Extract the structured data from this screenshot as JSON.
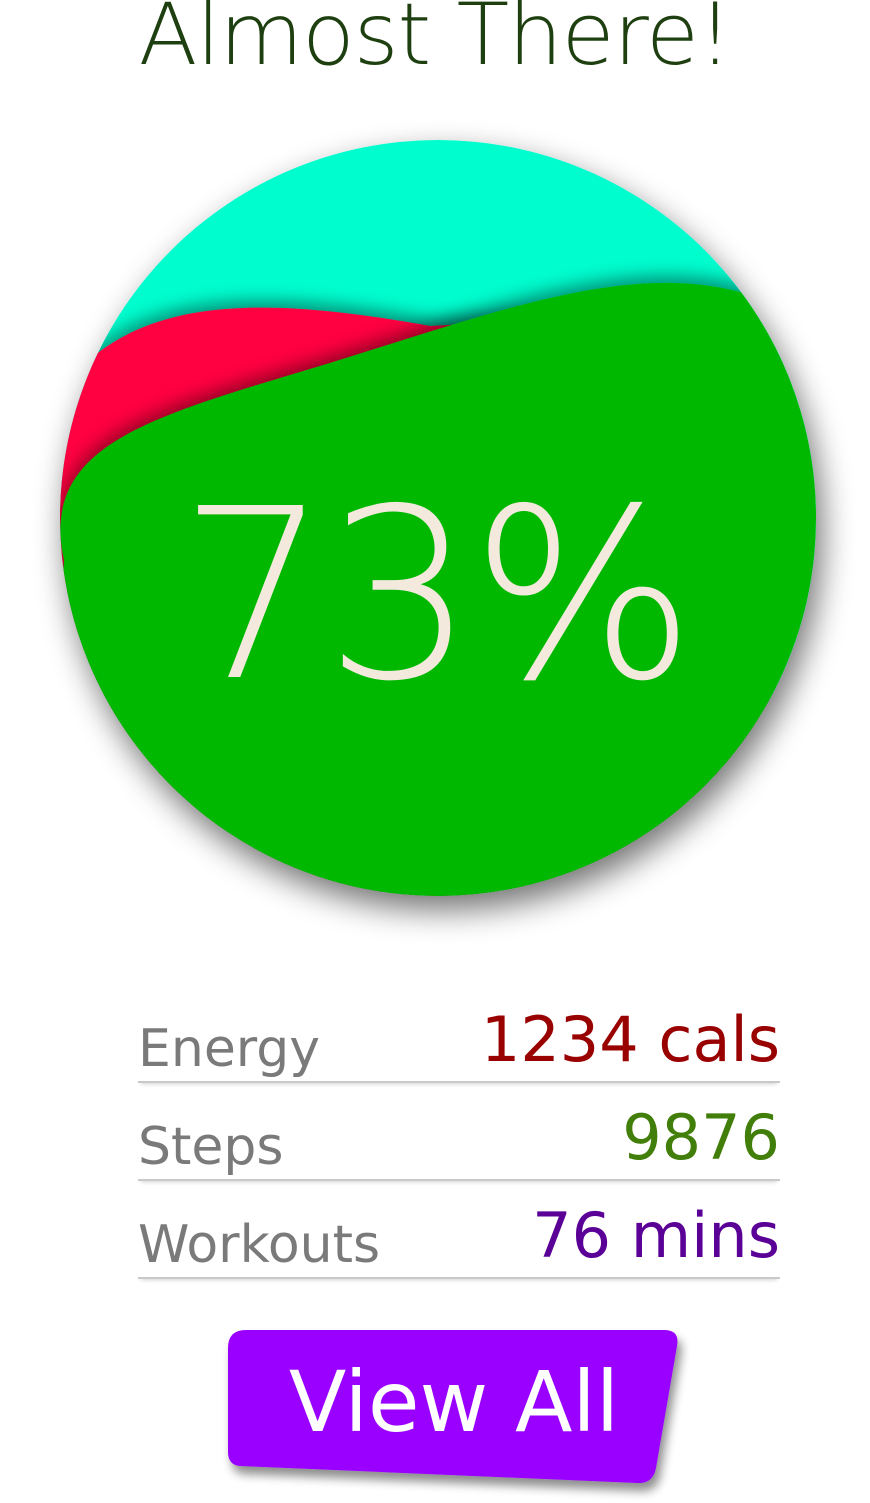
{
  "header": {
    "title": "Almost There!"
  },
  "progress": {
    "label": "73%",
    "value": 0.73,
    "colors": {
      "back": "#00fdce",
      "middle": "#ff0040",
      "front": "#00b800",
      "label": "#f4e9dd"
    }
  },
  "stats": [
    {
      "label": "Energy",
      "value": "1234 cals",
      "color": "#990000"
    },
    {
      "label": "Steps",
      "value": "9876",
      "color": "#417e0a"
    },
    {
      "label": "Workouts",
      "value": "76 mins",
      "color": "#5a0096"
    }
  ],
  "actions": {
    "view_all_label": "View All",
    "button_color": "#9900ff"
  }
}
